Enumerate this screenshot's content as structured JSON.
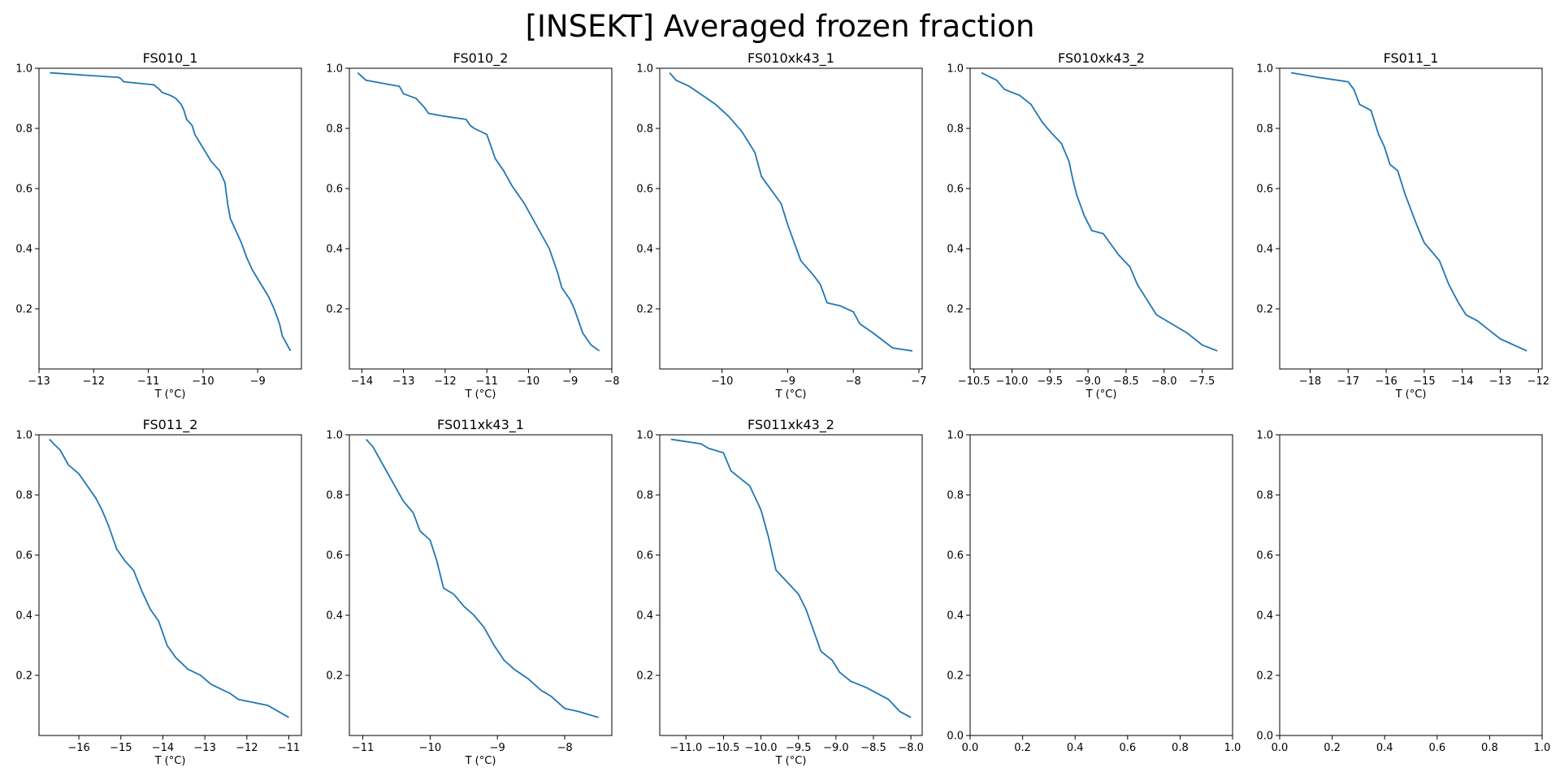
{
  "figure": {
    "title": "[INSEKT] Averaged frozen fraction",
    "line_color": "#1f77b4"
  },
  "chart_data": [
    {
      "type": "line",
      "title": "FS010_1",
      "xlabel": "T (°C)",
      "ylabel": "",
      "xlim": [
        -13.0,
        -8.2
      ],
      "ylim": [
        0.0,
        1.0
      ],
      "xticks": [
        -13,
        -12,
        -11,
        -10,
        -9
      ],
      "yticks": [
        0.2,
        0.4,
        0.6,
        0.8,
        1.0
      ],
      "xtick_labels": [
        "−13",
        "−12",
        "−11",
        "−10",
        "−9"
      ],
      "ytick_labels": [
        "0.2",
        "0.4",
        "0.6",
        "0.8",
        "1.0"
      ],
      "series": [
        {
          "x": [
            -12.8,
            -12.0,
            -11.55,
            -11.5,
            -11.45,
            -10.9,
            -10.8,
            -10.75,
            -10.6,
            -10.5,
            -10.4,
            -10.35,
            -10.3,
            -10.2,
            -10.15,
            -10.05,
            -9.95,
            -9.85,
            -9.7,
            -9.6,
            -9.55,
            -9.5,
            -9.4,
            -9.3,
            -9.2,
            -9.1,
            -9.0,
            -8.9,
            -8.8,
            -8.7,
            -8.6,
            -8.55,
            -8.4
          ],
          "y": [
            0.985,
            0.975,
            0.97,
            0.965,
            0.955,
            0.945,
            0.93,
            0.92,
            0.91,
            0.9,
            0.88,
            0.86,
            0.83,
            0.81,
            0.78,
            0.75,
            0.72,
            0.69,
            0.66,
            0.62,
            0.55,
            0.5,
            0.46,
            0.42,
            0.37,
            0.33,
            0.3,
            0.27,
            0.24,
            0.2,
            0.15,
            0.11,
            0.06
          ]
        }
      ]
    },
    {
      "type": "line",
      "title": "FS010_2",
      "xlabel": "T (°C)",
      "ylabel": "",
      "xlim": [
        -14.3,
        -8.0
      ],
      "ylim": [
        0.0,
        1.0
      ],
      "xticks": [
        -14,
        -13,
        -12,
        -11,
        -10,
        -9,
        -8
      ],
      "yticks": [
        0.2,
        0.4,
        0.6,
        0.8,
        1.0
      ],
      "xtick_labels": [
        "−14",
        "−13",
        "−12",
        "−11",
        "−10",
        "−9",
        "−8"
      ],
      "ytick_labels": [
        "0.2",
        "0.4",
        "0.6",
        "0.8",
        "1.0"
      ],
      "series": [
        {
          "x": [
            -14.1,
            -13.9,
            -13.5,
            -13.1,
            -13.0,
            -12.7,
            -12.5,
            -12.4,
            -12.0,
            -11.5,
            -11.4,
            -11.3,
            -11.0,
            -10.9,
            -10.8,
            -10.6,
            -10.4,
            -10.3,
            -10.1,
            -9.9,
            -9.7,
            -9.5,
            -9.3,
            -9.2,
            -9.0,
            -8.9,
            -8.7,
            -8.5,
            -8.3
          ],
          "y": [
            0.985,
            0.96,
            0.95,
            0.94,
            0.915,
            0.9,
            0.87,
            0.85,
            0.84,
            0.83,
            0.81,
            0.8,
            0.78,
            0.74,
            0.7,
            0.66,
            0.61,
            0.59,
            0.55,
            0.5,
            0.45,
            0.4,
            0.32,
            0.27,
            0.23,
            0.2,
            0.12,
            0.08,
            0.06
          ]
        }
      ]
    },
    {
      "type": "line",
      "title": "FS010xk43_1",
      "xlabel": "T (°C)",
      "ylabel": "",
      "xlim": [
        -10.95,
        -6.95
      ],
      "ylim": [
        0.0,
        1.0
      ],
      "xticks": [
        -10,
        -9,
        -8,
        -7
      ],
      "yticks": [
        0.2,
        0.4,
        0.6,
        0.8,
        1.0
      ],
      "xtick_labels": [
        "−10",
        "−9",
        "−8",
        "−7"
      ],
      "ytick_labels": [
        "0.2",
        "0.4",
        "0.6",
        "0.8",
        "1.0"
      ],
      "series": [
        {
          "x": [
            -10.8,
            -10.7,
            -10.5,
            -10.3,
            -10.1,
            -9.9,
            -9.7,
            -9.5,
            -9.4,
            -9.3,
            -9.1,
            -9.0,
            -8.9,
            -8.8,
            -8.6,
            -8.5,
            -8.4,
            -8.2,
            -8.0,
            -7.9,
            -7.7,
            -7.4,
            -7.1
          ],
          "y": [
            0.985,
            0.96,
            0.94,
            0.91,
            0.88,
            0.84,
            0.79,
            0.72,
            0.64,
            0.61,
            0.55,
            0.48,
            0.42,
            0.36,
            0.31,
            0.28,
            0.22,
            0.21,
            0.19,
            0.15,
            0.12,
            0.07,
            0.06
          ]
        }
      ]
    },
    {
      "type": "line",
      "title": "FS010xk43_2",
      "xlabel": "T (°C)",
      "ylabel": "",
      "xlim": [
        -10.55,
        -7.1
      ],
      "ylim": [
        0.0,
        1.0
      ],
      "xticks": [
        -10.5,
        -10.0,
        -9.5,
        -9.0,
        -8.5,
        -8.0,
        -7.5
      ],
      "yticks": [
        0.2,
        0.4,
        0.6,
        0.8,
        1.0
      ],
      "xtick_labels": [
        "−10.5",
        "−10.0",
        "−9.5",
        "−9.0",
        "−8.5",
        "−8.0",
        "−7.5"
      ],
      "ytick_labels": [
        "0.2",
        "0.4",
        "0.6",
        "0.8",
        "1.0"
      ],
      "series": [
        {
          "x": [
            -10.4,
            -10.2,
            -10.1,
            -9.9,
            -9.75,
            -9.6,
            -9.5,
            -9.35,
            -9.25,
            -9.2,
            -9.15,
            -9.05,
            -8.95,
            -8.8,
            -8.6,
            -8.45,
            -8.35,
            -8.25,
            -8.1,
            -7.9,
            -7.7,
            -7.5,
            -7.3
          ],
          "y": [
            0.985,
            0.96,
            0.93,
            0.91,
            0.88,
            0.82,
            0.79,
            0.75,
            0.69,
            0.63,
            0.58,
            0.51,
            0.46,
            0.45,
            0.38,
            0.34,
            0.28,
            0.24,
            0.18,
            0.15,
            0.12,
            0.08,
            0.06
          ]
        }
      ]
    },
    {
      "type": "line",
      "title": "FS011_1",
      "xlabel": "T (°C)",
      "ylabel": "",
      "xlim": [
        -18.8,
        -11.9
      ],
      "ylim": [
        0.0,
        1.0
      ],
      "xticks": [
        -18,
        -17,
        -16,
        -15,
        -14,
        -13,
        -12
      ],
      "yticks": [
        0.2,
        0.4,
        0.6,
        0.8,
        1.0
      ],
      "xtick_labels": [
        "−18",
        "−17",
        "−16",
        "−15",
        "−14",
        "−13",
        "−12"
      ],
      "ytick_labels": [
        "0.2",
        "0.4",
        "0.6",
        "0.8",
        "1.0"
      ],
      "series": [
        {
          "x": [
            -18.5,
            -17.8,
            -17.0,
            -16.85,
            -16.7,
            -16.4,
            -16.2,
            -16.05,
            -15.9,
            -15.7,
            -15.5,
            -15.35,
            -15.2,
            -15.0,
            -14.8,
            -14.6,
            -14.35,
            -14.1,
            -13.9,
            -13.6,
            -13.3,
            -13.0,
            -12.3
          ],
          "y": [
            0.985,
            0.97,
            0.955,
            0.93,
            0.88,
            0.86,
            0.78,
            0.74,
            0.68,
            0.66,
            0.58,
            0.53,
            0.48,
            0.42,
            0.39,
            0.36,
            0.28,
            0.22,
            0.18,
            0.16,
            0.13,
            0.1,
            0.06
          ]
        }
      ]
    },
    {
      "type": "line",
      "title": "FS011_2",
      "xlabel": "T (°C)",
      "ylabel": "",
      "xlim": [
        -16.95,
        -10.7
      ],
      "ylim": [
        0.0,
        1.0
      ],
      "xticks": [
        -16,
        -15,
        -14,
        -13,
        -12,
        -11
      ],
      "yticks": [
        0.2,
        0.4,
        0.6,
        0.8,
        1.0
      ],
      "xtick_labels": [
        "−16",
        "−15",
        "−14",
        "−13",
        "−12",
        "−11"
      ],
      "ytick_labels": [
        "0.2",
        "0.4",
        "0.6",
        "0.8",
        "1.0"
      ],
      "series": [
        {
          "x": [
            -16.7,
            -16.6,
            -16.45,
            -16.25,
            -16.0,
            -15.8,
            -15.6,
            -15.45,
            -15.3,
            -15.1,
            -14.9,
            -14.7,
            -14.5,
            -14.3,
            -14.1,
            -13.9,
            -13.7,
            -13.4,
            -13.1,
            -12.85,
            -12.4,
            -12.2,
            -11.5,
            -11.0
          ],
          "y": [
            0.985,
            0.97,
            0.95,
            0.9,
            0.87,
            0.83,
            0.79,
            0.75,
            0.7,
            0.62,
            0.58,
            0.55,
            0.48,
            0.42,
            0.38,
            0.3,
            0.26,
            0.22,
            0.2,
            0.17,
            0.14,
            0.12,
            0.1,
            0.06
          ]
        }
      ]
    },
    {
      "type": "line",
      "title": "FS011xk43_1",
      "xlabel": "T (°C)",
      "ylabel": "",
      "xlim": [
        -11.2,
        -7.3
      ],
      "ylim": [
        0.0,
        1.0
      ],
      "xticks": [
        -11,
        -10,
        -9,
        -8
      ],
      "yticks": [
        0.2,
        0.4,
        0.6,
        0.8,
        1.0
      ],
      "xtick_labels": [
        "−11",
        "−10",
        "−9",
        "−8"
      ],
      "ytick_labels": [
        "0.2",
        "0.4",
        "0.6",
        "0.8",
        "1.0"
      ],
      "series": [
        {
          "x": [
            -10.95,
            -10.85,
            -10.7,
            -10.55,
            -10.4,
            -10.25,
            -10.15,
            -10.0,
            -9.9,
            -9.8,
            -9.65,
            -9.5,
            -9.35,
            -9.2,
            -9.05,
            -8.9,
            -8.75,
            -8.55,
            -8.35,
            -8.2,
            -8.0,
            -7.8,
            -7.5
          ],
          "y": [
            0.985,
            0.96,
            0.9,
            0.84,
            0.78,
            0.74,
            0.68,
            0.65,
            0.58,
            0.49,
            0.47,
            0.43,
            0.4,
            0.36,
            0.3,
            0.25,
            0.22,
            0.19,
            0.15,
            0.13,
            0.09,
            0.08,
            0.06
          ]
        }
      ]
    },
    {
      "type": "line",
      "title": "FS011xk43_2",
      "xlabel": "T (°C)",
      "ylabel": "",
      "xlim": [
        -11.35,
        -7.85
      ],
      "ylim": [
        0.0,
        1.0
      ],
      "xticks": [
        -11.0,
        -10.5,
        -10.0,
        -9.5,
        -9.0,
        -8.5,
        -8.0
      ],
      "yticks": [
        0.2,
        0.4,
        0.6,
        0.8,
        1.0
      ],
      "xtick_labels": [
        "−11.0",
        "−10.5",
        "−10.0",
        "−9.5",
        "−9.0",
        "−8.5",
        "−8.0"
      ],
      "ytick_labels": [
        "0.2",
        "0.4",
        "0.6",
        "0.8",
        "1.0"
      ],
      "series": [
        {
          "x": [
            -11.2,
            -10.8,
            -10.7,
            -10.5,
            -10.4,
            -10.3,
            -10.15,
            -10.0,
            -9.9,
            -9.8,
            -9.65,
            -9.5,
            -9.4,
            -9.3,
            -9.2,
            -9.05,
            -8.95,
            -8.8,
            -8.6,
            -8.45,
            -8.3,
            -8.15,
            -8.0
          ],
          "y": [
            0.985,
            0.97,
            0.955,
            0.94,
            0.88,
            0.86,
            0.83,
            0.75,
            0.66,
            0.55,
            0.51,
            0.47,
            0.42,
            0.35,
            0.28,
            0.25,
            0.21,
            0.18,
            0.16,
            0.14,
            0.12,
            0.08,
            0.06
          ]
        }
      ]
    },
    {
      "type": "line",
      "title": "",
      "xlabel": "",
      "ylabel": "",
      "xlim": [
        0.0,
        1.0
      ],
      "ylim": [
        0.0,
        1.0
      ],
      "xticks": [
        0.0,
        0.2,
        0.4,
        0.6,
        0.8,
        1.0
      ],
      "yticks": [
        0.0,
        0.2,
        0.4,
        0.6,
        0.8,
        1.0
      ],
      "xtick_labels": [
        "0.0",
        "0.2",
        "0.4",
        "0.6",
        "0.8",
        "1.0"
      ],
      "ytick_labels": [
        "0.0",
        "0.2",
        "0.4",
        "0.6",
        "0.8",
        "1.0"
      ],
      "series": []
    },
    {
      "type": "line",
      "title": "",
      "xlabel": "",
      "ylabel": "",
      "xlim": [
        0.0,
        1.0
      ],
      "ylim": [
        0.0,
        1.0
      ],
      "xticks": [
        0.0,
        0.2,
        0.4,
        0.6,
        0.8,
        1.0
      ],
      "yticks": [
        0.0,
        0.2,
        0.4,
        0.6,
        0.8,
        1.0
      ],
      "xtick_labels": [
        "0.0",
        "0.2",
        "0.4",
        "0.6",
        "0.8",
        "1.0"
      ],
      "ytick_labels": [
        "0.0",
        "0.2",
        "0.4",
        "0.6",
        "0.8",
        "1.0"
      ],
      "series": []
    }
  ]
}
